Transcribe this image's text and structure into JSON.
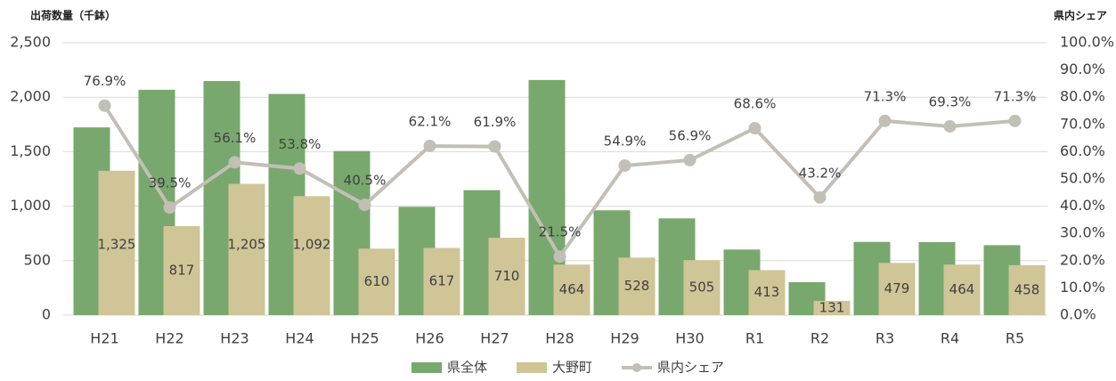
{
  "chart_data": {
    "type": "bar",
    "y_label": "出荷数量（千鉢）",
    "y2_label": "県内シェア",
    "categories": [
      "H21",
      "H22",
      "H23",
      "H24",
      "H25",
      "H26",
      "H27",
      "H28",
      "H29",
      "H30",
      "R1",
      "R2",
      "R3",
      "R4",
      "R5"
    ],
    "series": [
      {
        "name": "県全体",
        "color": "#78a86e",
        "values": [
          1723,
          2068,
          2148,
          2030,
          1506,
          994,
          1147,
          2158,
          962,
          888,
          602,
          303,
          672,
          670,
          642
        ]
      },
      {
        "name": "大野町",
        "color": "#cfc597",
        "values": [
          1325,
          817,
          1205,
          1092,
          610,
          617,
          710,
          464,
          528,
          505,
          413,
          131,
          479,
          464,
          458
        ],
        "value_labels": [
          "1,325",
          "817",
          "1,205",
          "1,092",
          "610",
          "617",
          "710",
          "464",
          "528",
          "505",
          "413",
          "131",
          "479",
          "464",
          "458"
        ]
      },
      {
        "name": "県内シェア",
        "type": "line",
        "axis": "y2",
        "color": "#c2bfb5",
        "values": [
          76.9,
          39.5,
          56.1,
          53.8,
          40.5,
          62.1,
          61.9,
          21.5,
          54.9,
          56.9,
          68.6,
          43.2,
          71.3,
          69.3,
          71.3
        ],
        "value_labels": [
          "76.9%",
          "39.5%",
          "56.1%",
          "53.8%",
          "40.5%",
          "62.1%",
          "61.9%",
          "21.5%",
          "54.9%",
          "56.9%",
          "68.6%",
          "43.2%",
          "71.3%",
          "69.3%",
          "71.3%"
        ]
      }
    ],
    "ylim": [
      0,
      2500
    ],
    "yticks": [
      0,
      500,
      {
        "value": 1000,
        "label": "1,000"
      },
      {
        "value": 1500,
        "label": "1,500"
      },
      {
        "value": 2000,
        "label": "2,000"
      },
      {
        "value": 2500,
        "label": "2,500"
      }
    ],
    "y2lim": [
      0,
      100
    ],
    "y2ticks": [
      {
        "value": 0,
        "label": "0.0%"
      },
      {
        "value": 10,
        "label": "10.0%"
      },
      {
        "value": 20,
        "label": "20.0%"
      },
      {
        "value": 30,
        "label": "30.0%"
      },
      {
        "value": 40,
        "label": "40.0%"
      },
      {
        "value": 50,
        "label": "50.0%"
      },
      {
        "value": 60,
        "label": "60.0%"
      },
      {
        "value": 70,
        "label": "70.0%"
      },
      {
        "value": 80,
        "label": "80.0%"
      },
      {
        "value": 90,
        "label": "90.0%"
      },
      {
        "value": 100,
        "label": "100.0%"
      }
    ],
    "grid": true,
    "legend": "bottom"
  }
}
